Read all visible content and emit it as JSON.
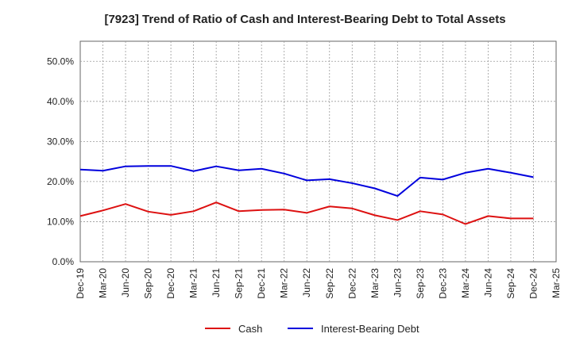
{
  "chart_data": {
    "type": "line",
    "title": "[7923]  Trend of Ratio of Cash and Interest-Bearing Debt to Total Assets",
    "xlabel": "",
    "ylabel": "",
    "ylim": [
      0,
      55
    ],
    "y_ticks": [
      0,
      10,
      20,
      30,
      40,
      50
    ],
    "y_tick_labels": [
      "0.0%",
      "10.0%",
      "20.0%",
      "30.0%",
      "40.0%",
      "50.0%"
    ],
    "x_tick_labels": [
      "Dec-19",
      "Mar-20",
      "Jun-20",
      "Sep-20",
      "Dec-20",
      "Mar-21",
      "Jun-21",
      "Sep-21",
      "Dec-21",
      "Mar-22",
      "Jun-22",
      "Sep-22",
      "Dec-22",
      "Mar-23",
      "Jun-23",
      "Sep-23",
      "Dec-23",
      "Mar-24",
      "Jun-24",
      "Sep-24",
      "Dec-24",
      "Mar-25"
    ],
    "categories": [
      "Dec-19",
      "Mar-20",
      "Jun-20",
      "Sep-20",
      "Dec-20",
      "Mar-21",
      "Jun-21",
      "Sep-21",
      "Dec-21",
      "Mar-22",
      "Jun-22",
      "Sep-22",
      "Dec-22",
      "Mar-23",
      "Jun-23",
      "Sep-23",
      "Dec-23",
      "Mar-24",
      "Jun-24",
      "Sep-24",
      "Dec-24"
    ],
    "grid": true,
    "legend_position": "bottom-center",
    "series": [
      {
        "name": "Cash",
        "color": "#dd1111",
        "values": [
          11.4,
          12.8,
          14.4,
          12.5,
          11.7,
          12.6,
          14.8,
          12.6,
          12.9,
          13.0,
          12.2,
          13.8,
          13.3,
          11.6,
          10.4,
          12.6,
          11.8,
          9.4,
          11.4,
          10.8,
          10.8
        ]
      },
      {
        "name": "Interest-Bearing Debt",
        "color": "#0000dd",
        "values": [
          23.0,
          22.7,
          23.8,
          23.9,
          23.9,
          22.6,
          23.8,
          22.8,
          23.2,
          22.0,
          20.3,
          20.6,
          19.6,
          18.3,
          16.4,
          21.0,
          20.5,
          22.2,
          23.2,
          22.2,
          21.1
        ]
      }
    ]
  }
}
